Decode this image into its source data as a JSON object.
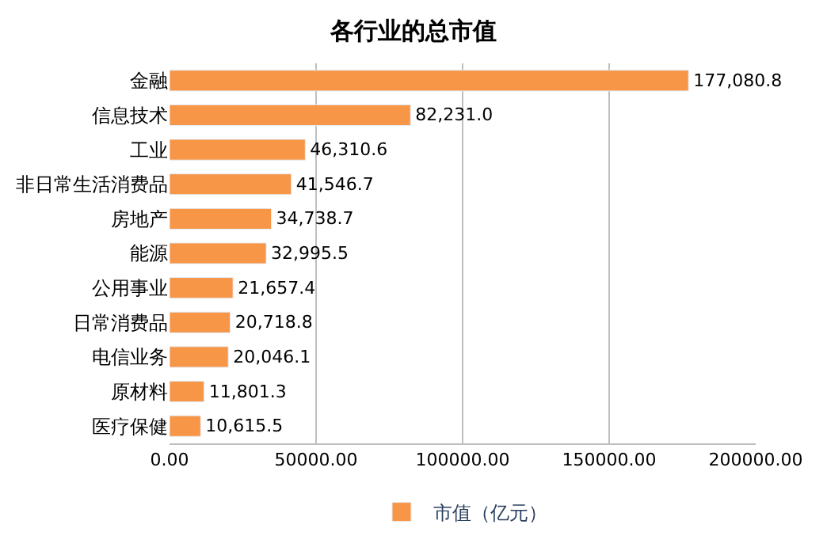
{
  "chart_data": {
    "type": "bar",
    "orientation": "horizontal",
    "title": "各行业的总市值",
    "categories": [
      "金融",
      "信息技术",
      "工业",
      "非日常生活消费品",
      "房地产",
      "能源",
      "公用事业",
      "日常消费品",
      "电信业务",
      "原材料",
      "医疗保健"
    ],
    "series": [
      {
        "name": "市值（亿元）",
        "color": "#f79646",
        "values": [
          177080.8,
          82231.0,
          46310.6,
          41546.7,
          34738.7,
          32995.5,
          21657.4,
          20718.8,
          20046.1,
          11801.3,
          10615.5
        ],
        "value_labels": [
          "177,080.8",
          "82,231.0",
          "46,310.6",
          "41,546.7",
          "34,738.7",
          "32,995.5",
          "21,657.4",
          "20,718.8",
          "20,046.1",
          "11,801.3",
          "10,615.5"
        ]
      }
    ],
    "xlim": [
      0,
      200000
    ],
    "xticks": [
      {
        "value": 0,
        "label": "0.00"
      },
      {
        "value": 50000,
        "label": "50000.00"
      },
      {
        "value": 100000,
        "label": "100000.00"
      },
      {
        "value": 150000,
        "label": "150000.00"
      },
      {
        "value": 200000,
        "label": "200000.00"
      }
    ],
    "grid": "x",
    "legend": "bottom"
  }
}
